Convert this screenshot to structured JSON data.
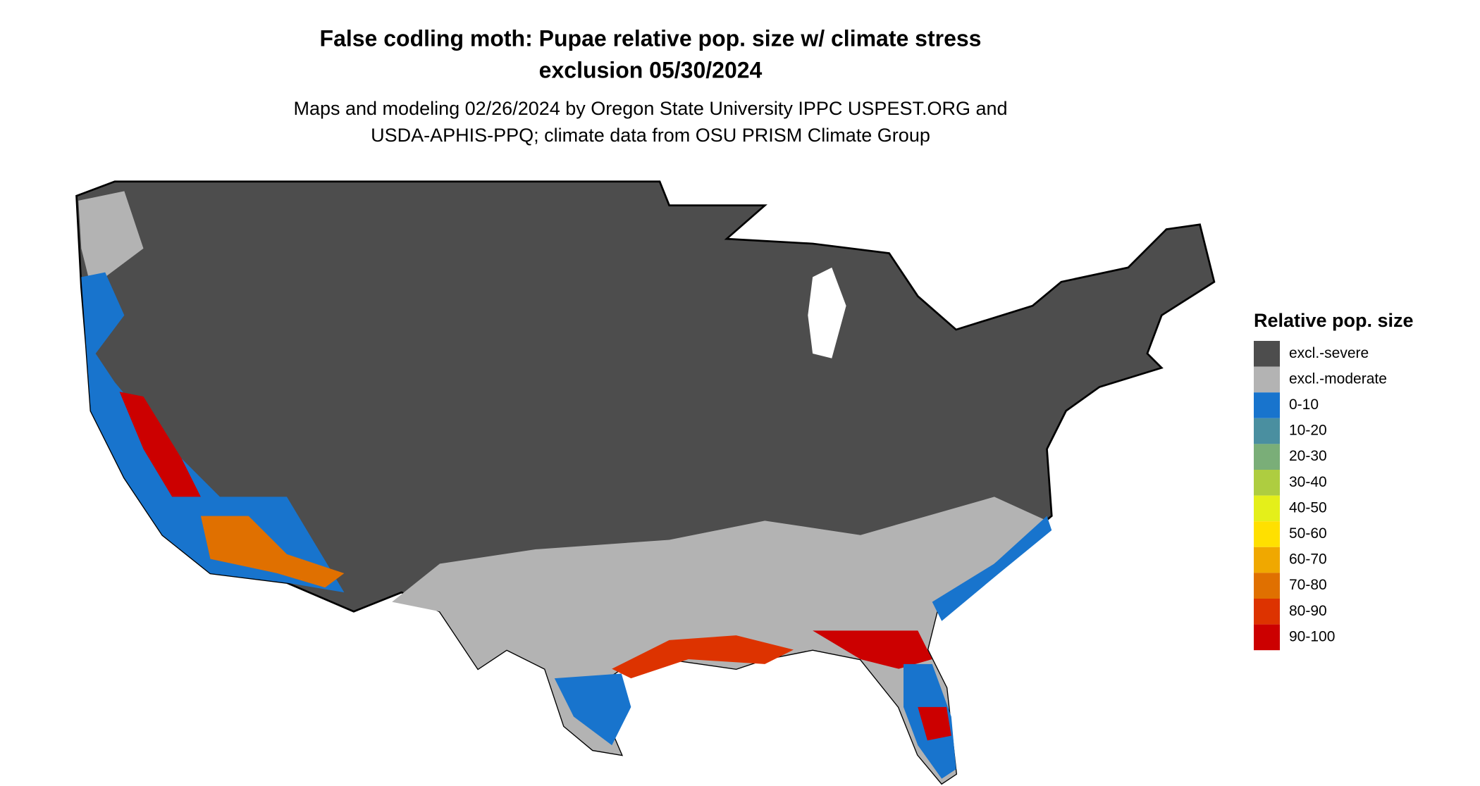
{
  "header": {
    "title_lines": [
      "False codling moth: Pupae relative pop. size w/ climate stress",
      "exclusion 05/30/2024"
    ],
    "subtitle_lines": [
      "Maps and modeling 02/26/2024 by Oregon State University IPPC USPEST.ORG and",
      "USDA-APHIS-PPQ; climate data from OSU PRISM Climate Group"
    ]
  },
  "legend": {
    "title": "Relative pop. size",
    "items": [
      {
        "label": "excl.-severe",
        "color": "#4d4d4d"
      },
      {
        "label": "excl.-moderate",
        "color": "#b3b3b3"
      },
      {
        "label": "0-10",
        "color": "#1874cd"
      },
      {
        "label": "10-20",
        "color": "#4a8fa0"
      },
      {
        "label": "20-30",
        "color": "#7aae78"
      },
      {
        "label": "30-40",
        "color": "#aecd40"
      },
      {
        "label": "40-50",
        "color": "#e4ef1a"
      },
      {
        "label": "50-60",
        "color": "#ffe000"
      },
      {
        "label": "60-70",
        "color": "#f0a800"
      },
      {
        "label": "70-80",
        "color": "#e07000"
      },
      {
        "label": "80-90",
        "color": "#dd3300"
      },
      {
        "label": "90-100",
        "color": "#cc0000"
      }
    ]
  }
}
